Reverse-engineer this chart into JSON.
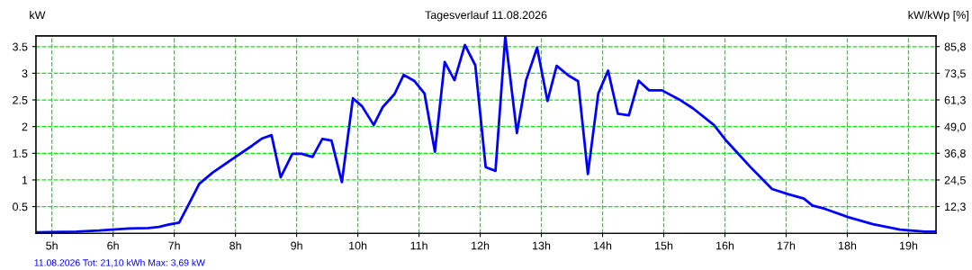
{
  "chart_data": {
    "type": "line",
    "title": "Tagesverlauf 11.08.2026",
    "ylabel": "kW",
    "y2label": "kW/kWp [%]",
    "annotations": [
      "11.08.2026 Tot: 21,10 kWh Max: 3,69 kW"
    ],
    "series": [
      {
        "color": "#0000ff",
        "x": [
          4.74,
          5.4,
          5.77,
          6.26,
          6.58,
          6.75,
          6.9,
          7.08,
          7.23,
          7.41,
          7.63,
          8.0,
          8.27,
          8.44,
          8.59,
          8.74,
          8.93,
          9.08,
          9.26,
          9.42,
          9.57,
          9.74,
          9.92,
          10.07,
          10.26,
          10.41,
          10.6,
          10.75,
          10.92,
          11.09,
          11.26,
          11.42,
          11.58,
          11.75,
          11.92,
          12.09,
          12.25,
          12.41,
          12.6,
          12.75,
          12.93,
          13.1,
          13.25,
          13.44,
          13.6,
          13.76,
          13.93,
          14.09,
          14.25,
          14.43,
          14.59,
          14.76,
          14.97,
          15.25,
          15.48,
          15.82,
          16.01,
          16.21,
          16.41,
          16.6,
          16.77,
          17.04,
          17.29,
          17.43,
          17.63,
          18.02,
          18.42,
          18.86,
          19.27,
          19.45
        ],
        "values": [
          0.02,
          0.03,
          0.05,
          0.09,
          0.1,
          0.12,
          0.16,
          0.2,
          0.53,
          0.93,
          1.14,
          1.43,
          1.64,
          1.78,
          1.84,
          1.05,
          1.49,
          1.49,
          1.43,
          1.77,
          1.74,
          0.96,
          2.53,
          2.38,
          2.03,
          2.37,
          2.61,
          2.97,
          2.86,
          2.62,
          1.53,
          3.21,
          2.87,
          3.53,
          3.15,
          1.24,
          1.17,
          3.69,
          1.88,
          2.87,
          3.48,
          2.48,
          3.14,
          2.96,
          2.85,
          1.11,
          2.62,
          3.05,
          2.24,
          2.21,
          2.86,
          2.68,
          2.68,
          2.51,
          2.34,
          2.03,
          1.75,
          1.5,
          1.25,
          1.03,
          0.83,
          0.73,
          0.65,
          0.52,
          0.46,
          0.3,
          0.17,
          0.07,
          0.03,
          0.03
        ]
      }
    ],
    "xlim": [
      4.74,
      19.45
    ],
    "ylim": [
      0,
      3.7
    ],
    "y2lim": [
      0,
      90.7
    ],
    "xticks": [
      {
        "value": 5,
        "label": "5h"
      },
      {
        "value": 6,
        "label": "6h"
      },
      {
        "value": 7,
        "label": "7h"
      },
      {
        "value": 8,
        "label": "8h"
      },
      {
        "value": 9,
        "label": "9h"
      },
      {
        "value": 10,
        "label": "10h"
      },
      {
        "value": 11,
        "label": "11h"
      },
      {
        "value": 12,
        "label": "12h"
      },
      {
        "value": 13,
        "label": "13h"
      },
      {
        "value": 14,
        "label": "14h"
      },
      {
        "value": 15,
        "label": "15h"
      },
      {
        "value": 16,
        "label": "16h"
      },
      {
        "value": 17,
        "label": "17h"
      },
      {
        "value": 18,
        "label": "18h"
      },
      {
        "value": 19,
        "label": "19h"
      }
    ],
    "yticks": [
      0.5,
      1,
      1.5,
      2,
      2.5,
      3,
      3.5
    ],
    "y2ticks": [
      {
        "value": 12.3,
        "label": "12,3"
      },
      {
        "value": 24.5,
        "label": "24,5"
      },
      {
        "value": 36.8,
        "label": "36,8"
      },
      {
        "value": 49.0,
        "label": "49,0"
      },
      {
        "value": 61.3,
        "label": "61,3"
      },
      {
        "value": 73.5,
        "label": "73,5"
      },
      {
        "value": 85.8,
        "label": "85,8"
      }
    ],
    "grid": true,
    "marker": "none",
    "line_style": "solid"
  }
}
